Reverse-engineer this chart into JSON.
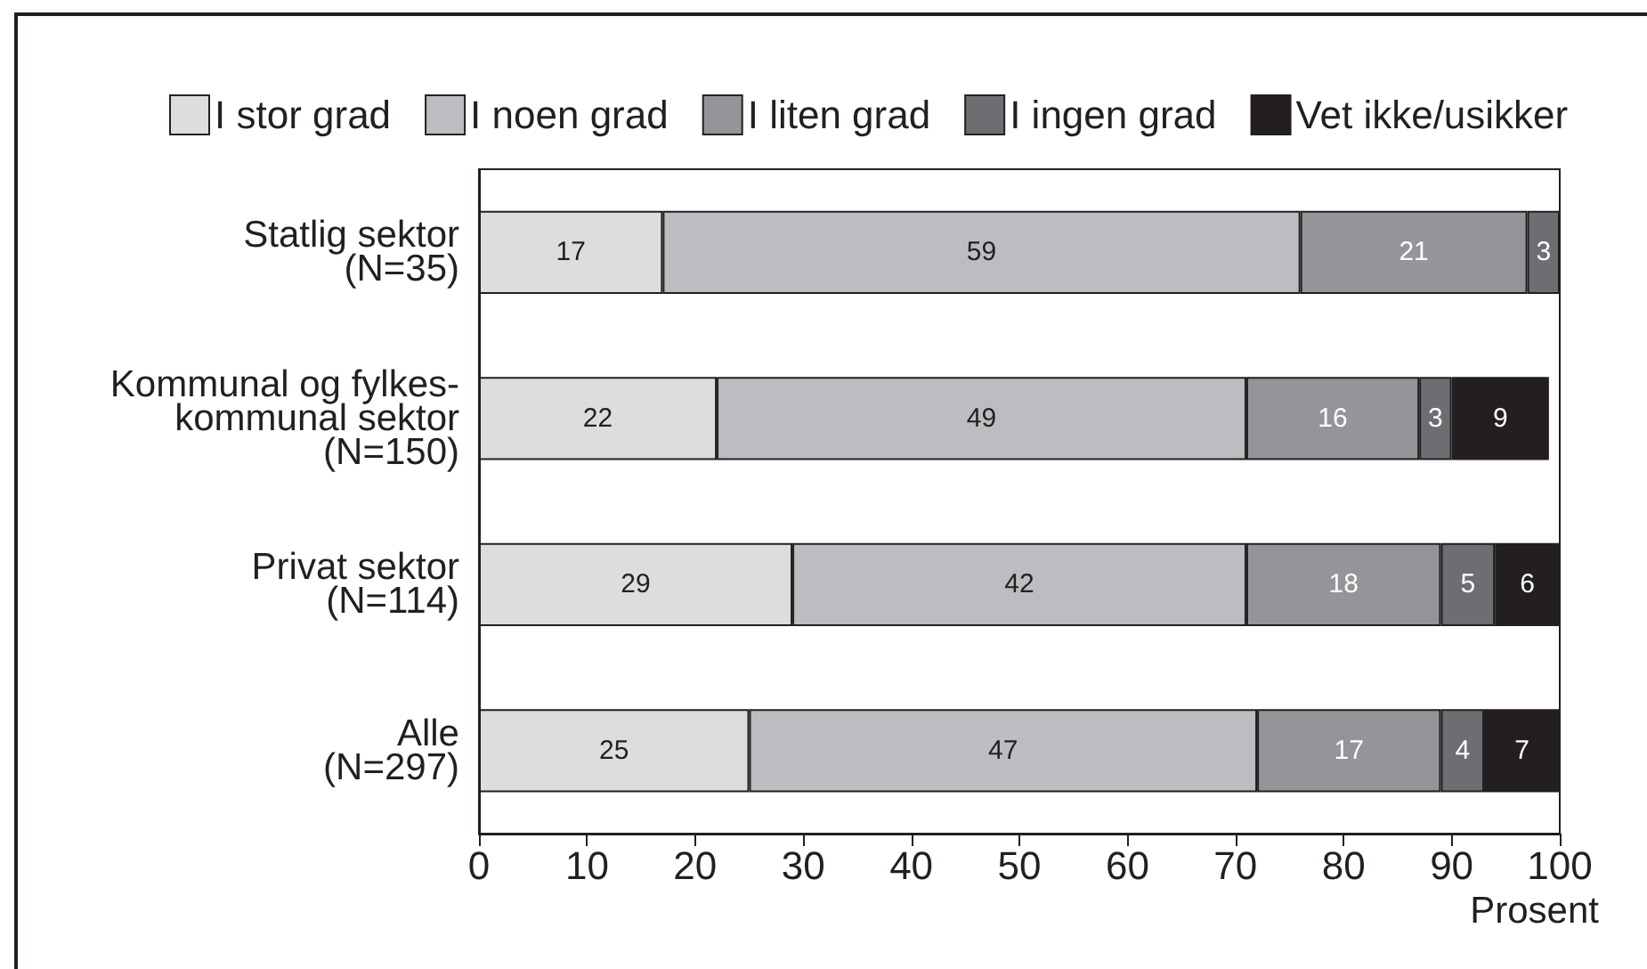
{
  "chart_data": {
    "type": "bar",
    "orientation": "horizontal",
    "stacked": true,
    "categories": [
      "Statlig sektor\n(N=35)",
      "Kommunal og fylkes-\nkommunal sektor\n(N=150)",
      "Privat sektor\n(N=114)",
      "Alle\n(N=297)"
    ],
    "series": [
      {
        "name": "I stor grad",
        "color": "#dcdddf",
        "values": [
          17,
          22,
          29,
          25
        ]
      },
      {
        "name": "I noen grad",
        "color": "#bcbdc0",
        "values": [
          59,
          49,
          42,
          47
        ]
      },
      {
        "name": "I liten grad",
        "color": "#939598",
        "values": [
          21,
          16,
          18,
          17
        ]
      },
      {
        "name": "I ingen grad",
        "color": "#6d6e71",
        "values": [
          3,
          3,
          5,
          4
        ]
      },
      {
        "name": "Vet ikke/usikker",
        "color": "#231f20",
        "values": [
          null,
          9,
          6,
          7
        ]
      }
    ],
    "xlim": [
      0,
      100
    ],
    "xticks": [
      0,
      10,
      20,
      30,
      40,
      50,
      60,
      70,
      80,
      90,
      100
    ],
    "xlabel": "Prosent",
    "legend": "top",
    "data_labels": true
  }
}
